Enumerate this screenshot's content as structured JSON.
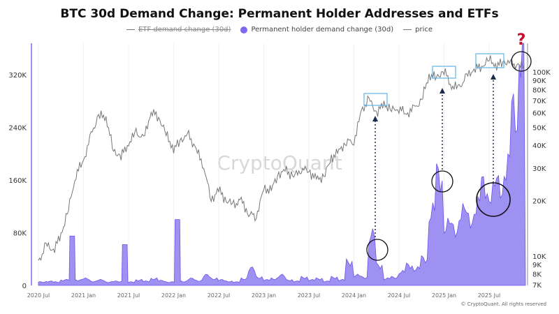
{
  "chart_data": {
    "type": "area",
    "title": "BTC 30d Demand Change: Permanent Holder Addresses and ETFs",
    "legend": [
      {
        "label": "ETF demand change (30d)",
        "style": "line",
        "hidden": true
      },
      {
        "label": "Permanent holder demand change (30d)",
        "style": "dot",
        "color": "#7b68ee"
      },
      {
        "label": "price",
        "style": "line",
        "color": "#777777"
      }
    ],
    "legend_placement": "top-center",
    "watermark": "CryptoQuant",
    "copyright": "© CryptoQuant. All rights reserved",
    "x_tick_labels": [
      "2020 Jul",
      "2021 Jan",
      "2021 Jul",
      "2022 Jan",
      "2022 Jul",
      "2023 Jan",
      "2023 Jul",
      "2024 Jan",
      "2024 Jul",
      "2025 Jan",
      "2025 Jul"
    ],
    "left_axis": {
      "ticks": [
        0,
        80000,
        160000,
        240000,
        320000
      ],
      "labels": [
        "0",
        "80K",
        "160K",
        "240K",
        "320K"
      ],
      "range": [
        0,
        370000
      ]
    },
    "right_axis": {
      "scale": "log",
      "ticks": [
        7000,
        8000,
        9000,
        10000,
        20000,
        30000,
        40000,
        50000,
        60000,
        70000,
        80000,
        90000,
        100000
      ],
      "labels": [
        "7K",
        "8K",
        "9K",
        "10K",
        "20K",
        "30K",
        "40K",
        "50K",
        "60K",
        "70K",
        "80K",
        "90K",
        "100K"
      ]
    },
    "months": [
      "2020-07",
      "2020-08",
      "2020-09",
      "2020-10",
      "2020-11",
      "2020-12",
      "2021-01",
      "2021-02",
      "2021-03",
      "2021-04",
      "2021-05",
      "2021-06",
      "2021-07",
      "2021-08",
      "2021-09",
      "2021-10",
      "2021-11",
      "2021-12",
      "2022-01",
      "2022-02",
      "2022-03",
      "2022-04",
      "2022-05",
      "2022-06",
      "2022-07",
      "2022-08",
      "2022-09",
      "2022-10",
      "2022-11",
      "2022-12",
      "2023-01",
      "2023-02",
      "2023-03",
      "2023-04",
      "2023-05",
      "2023-06",
      "2023-07",
      "2023-08",
      "2023-09",
      "2023-10",
      "2023-11",
      "2023-12",
      "2024-01",
      "2024-02",
      "2024-03",
      "2024-04",
      "2024-05",
      "2024-06",
      "2024-07",
      "2024-08",
      "2024-09",
      "2024-10",
      "2024-11",
      "2024-12",
      "2025-01",
      "2025-02",
      "2025-03",
      "2025-04",
      "2025-05",
      "2025-06",
      "2025-07",
      "2025-08",
      "2025-09",
      "2025-10",
      "2025-11"
    ],
    "series": [
      {
        "name": "Permanent holder demand change (30d)",
        "axis": "left",
        "color": "#7b68ee",
        "values": [
          5000,
          6000,
          5000,
          8000,
          75000,
          8000,
          10000,
          6000,
          8000,
          5000,
          6000,
          62000,
          5000,
          8000,
          6000,
          10000,
          7000,
          5000,
          100000,
          6000,
          10000,
          7000,
          15000,
          10000,
          8000,
          6000,
          5000,
          10000,
          25000,
          12000,
          8000,
          10000,
          15000,
          8000,
          6000,
          12000,
          8000,
          10000,
          6000,
          12000,
          8000,
          35000,
          15000,
          12000,
          75000,
          30000,
          10000,
          12000,
          20000,
          30000,
          25000,
          40000,
          110000,
          165000,
          90000,
          85000,
          110000,
          100000,
          120000,
          150000,
          140000,
          150000,
          180000,
          260000,
          360000
        ]
      },
      {
        "name": "price",
        "axis": "right",
        "color": "#777777",
        "values": [
          9200,
          11500,
          10800,
          13000,
          18000,
          28000,
          33000,
          45000,
          58000,
          57000,
          37000,
          35000,
          41000,
          47000,
          43000,
          61000,
          57000,
          46000,
          38000,
          43000,
          45000,
          38000,
          31000,
          20000,
          23000,
          20000,
          19000,
          20000,
          17000,
          16500,
          23000,
          23000,
          28000,
          29000,
          27000,
          30000,
          29000,
          26000,
          27000,
          34000,
          37000,
          42000,
          42000,
          61000,
          71000,
          60000,
          67000,
          62000,
          64000,
          59000,
          63000,
          70000,
          96000,
          93000,
          102000,
          84000,
          82000,
          94000,
          104000,
          107000,
          117000,
          108000,
          114000,
          110000,
          108000
        ]
      }
    ],
    "annotations": {
      "question_mark": "?"
    }
  }
}
